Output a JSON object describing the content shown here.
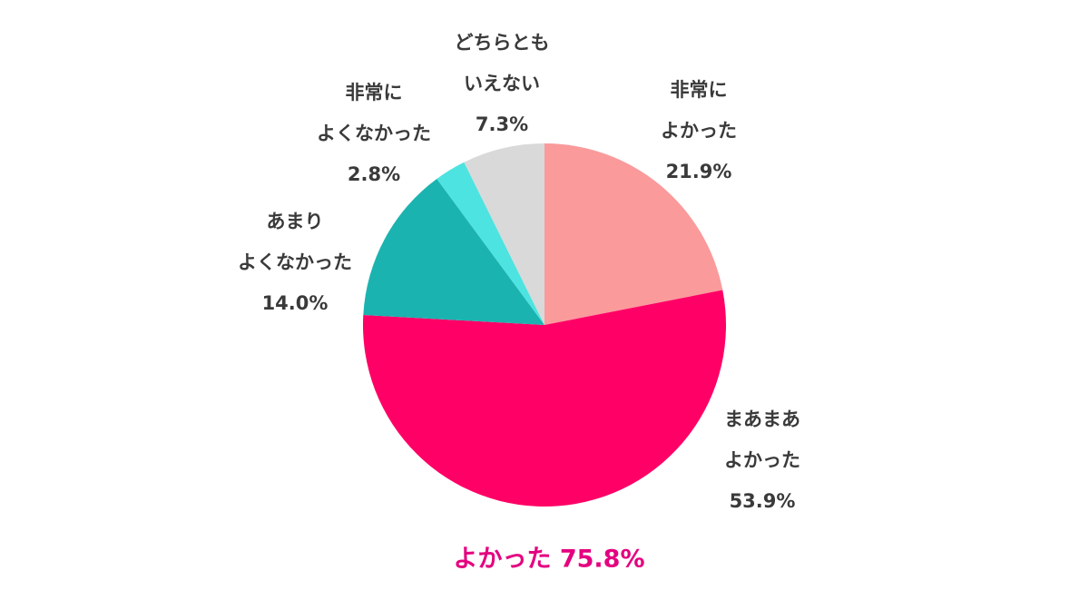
{
  "chart_data": {
    "type": "pie",
    "categories": [
      [
        "非常に",
        "よかった"
      ],
      [
        "まあまあ",
        "よかった"
      ],
      [
        "あまり",
        "よくなかった"
      ],
      [
        "非常に",
        "よくなかった"
      ],
      [
        "どちらとも",
        "いえない"
      ]
    ],
    "values": [
      21.9,
      53.9,
      14.0,
      2.8,
      7.3
    ],
    "value_labels": [
      "21.9%",
      "53.9%",
      "14.0%",
      "2.8%",
      "7.3%"
    ],
    "colors": [
      "#fa9a9b",
      "#ff0066",
      "#1bb3b0",
      "#4de3e0",
      "#d9d9d9"
    ],
    "annotation": "よかった 75.8%"
  }
}
